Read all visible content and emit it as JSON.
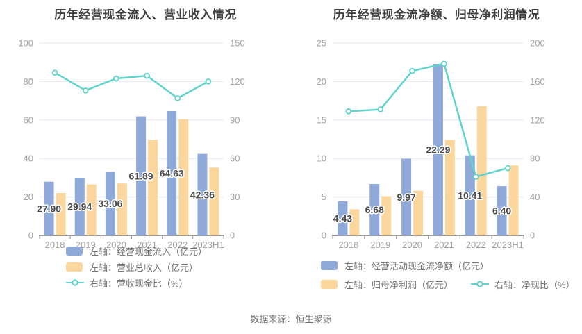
{
  "source": "数据来源：恒生聚源",
  "colors": {
    "bar_blue": "#8FA9D8",
    "bar_orange": "#FCD79D",
    "line_teal": "#5FD3CC",
    "grid": "#E3E8F3",
    "axis_line": "#9B9B9B",
    "axis_label": "#A2A2A2",
    "title": "#3F3F3F",
    "data_label": "#4A4A4A"
  },
  "chart_data": [
    {
      "type": "bar+line dual-axis",
      "title": "历年经营现金流入、营业收入情况",
      "categories": [
        "2018",
        "2019",
        "2020",
        "2021",
        "2022",
        "2023H1"
      ],
      "left_axis": {
        "min": 0,
        "max": 100,
        "step": 20
      },
      "right_axis": {
        "min": 0,
        "max": 150,
        "step": 30
      },
      "grid": true,
      "legend_position": "bottom",
      "series": [
        {
          "name": "左轴：经营现金流入（亿元）",
          "type": "bar",
          "axis": "left",
          "color": "#8FA9D8",
          "values": [
            27.9,
            29.94,
            33.06,
            61.89,
            64.63,
            42.36
          ],
          "labels": [
            "27.90",
            "29.94",
            "33.06",
            "61.89",
            "64.63",
            "42.36"
          ]
        },
        {
          "name": "左轴：营业总收入（亿元）",
          "type": "bar",
          "axis": "left",
          "color": "#FCD79D",
          "values": [
            22.0,
            26.5,
            27.0,
            49.7,
            60.4,
            35.3
          ]
        },
        {
          "name": "右轴：营收现金比（%）",
          "type": "line",
          "axis": "right",
          "color": "#5FD3CC",
          "values": [
            126.9,
            113.0,
            122.4,
            124.5,
            107.0,
            120.0
          ]
        }
      ]
    },
    {
      "type": "bar+line dual-axis",
      "title": "历年经营现金流净额、归母净利润情况",
      "categories": [
        "2018",
        "2019",
        "2020",
        "2021",
        "2022",
        "2023H1"
      ],
      "left_axis": {
        "min": 0,
        "max": 25,
        "step": 5
      },
      "right_axis": {
        "min": 0,
        "max": 200,
        "step": 40
      },
      "grid": true,
      "legend_position": "bottom",
      "series": [
        {
          "name": "左轴：经营活动现金流净额（亿元）",
          "type": "bar",
          "axis": "left",
          "color": "#8FA9D8",
          "values": [
            4.43,
            6.68,
            9.97,
            22.29,
            10.41,
            6.4
          ],
          "labels": [
            "4.43",
            "6.68",
            "9.97",
            "22.29",
            "10.41",
            "6.40"
          ]
        },
        {
          "name": "左轴：归母净利润（亿元）",
          "type": "bar",
          "axis": "left",
          "color": "#FCD79D",
          "values": [
            3.4,
            5.1,
            5.8,
            12.4,
            16.8,
            9.1
          ]
        },
        {
          "name": "右轴：净现比（%）",
          "type": "line",
          "axis": "right",
          "color": "#5FD3CC",
          "values": [
            129,
            131,
            171,
            178.5,
            61,
            70
          ]
        }
      ]
    }
  ]
}
